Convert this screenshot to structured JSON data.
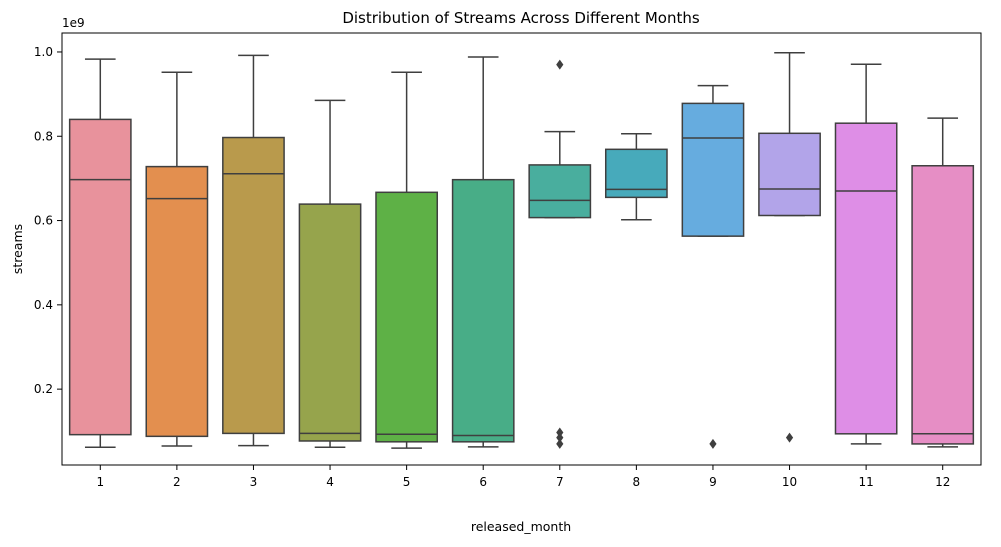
{
  "chart_data": {
    "type": "box",
    "title": "Distribution of Streams Across Different Months",
    "xlabel": "released_month",
    "ylabel": "streams",
    "y_offset_label": "1e9",
    "ylim": [
      0.02,
      1.045
    ],
    "yticks": [
      0.2,
      0.4,
      0.6,
      0.8,
      1.0
    ],
    "ytick_labels": [
      "0.2",
      "0.4",
      "0.6",
      "0.8",
      "1.0"
    ],
    "grid": false,
    "categories": [
      "1",
      "2",
      "3",
      "4",
      "5",
      "6",
      "7",
      "8",
      "9",
      "10",
      "11",
      "12"
    ],
    "boxes": [
      {
        "category": "1",
        "color": "#e8929c",
        "whislo": 0.062,
        "q1": 0.092,
        "med": 0.697,
        "q3": 0.84,
        "whishi": 0.983,
        "fliers": []
      },
      {
        "category": "2",
        "color": "#e38f4f",
        "whislo": 0.065,
        "q1": 0.088,
        "med": 0.652,
        "q3": 0.728,
        "whishi": 0.952,
        "fliers": []
      },
      {
        "category": "3",
        "color": "#b99a4c",
        "whislo": 0.066,
        "q1": 0.095,
        "med": 0.711,
        "q3": 0.797,
        "whishi": 0.992,
        "fliers": []
      },
      {
        "category": "4",
        "color": "#96a44c",
        "whislo": 0.062,
        "q1": 0.077,
        "med": 0.095,
        "q3": 0.639,
        "whishi": 0.885,
        "fliers": []
      },
      {
        "category": "5",
        "color": "#5eb146",
        "whislo": 0.06,
        "q1": 0.075,
        "med": 0.093,
        "q3": 0.667,
        "whishi": 0.952,
        "fliers": []
      },
      {
        "category": "6",
        "color": "#48ad87",
        "whislo": 0.063,
        "q1": 0.075,
        "med": 0.09,
        "q3": 0.697,
        "whishi": 0.988,
        "fliers": []
      },
      {
        "category": "7",
        "color": "#49ae9e",
        "whislo": 0.607,
        "q1": 0.607,
        "med": 0.648,
        "q3": 0.732,
        "whishi": 0.811,
        "fliers": [
          0.97,
          0.097,
          0.085,
          0.07
        ]
      },
      {
        "category": "8",
        "color": "#47aabb",
        "whislo": 0.602,
        "q1": 0.655,
        "med": 0.674,
        "q3": 0.769,
        "whishi": 0.806,
        "fliers": []
      },
      {
        "category": "9",
        "color": "#66acdf",
        "whislo": 0.563,
        "q1": 0.563,
        "med": 0.796,
        "q3": 0.878,
        "whishi": 0.92,
        "fliers": [
          0.07
        ]
      },
      {
        "category": "10",
        "color": "#b2a4e9",
        "whislo": 0.612,
        "q1": 0.612,
        "med": 0.675,
        "q3": 0.807,
        "whishi": 0.998,
        "fliers": [
          0.085
        ]
      },
      {
        "category": "11",
        "color": "#de8ee6",
        "whislo": 0.07,
        "q1": 0.094,
        "med": 0.67,
        "q3": 0.831,
        "whishi": 0.971,
        "fliers": []
      },
      {
        "category": "12",
        "color": "#e68ec5",
        "whislo": 0.063,
        "q1": 0.07,
        "med": 0.094,
        "q3": 0.73,
        "whishi": 0.843,
        "fliers": []
      }
    ]
  }
}
